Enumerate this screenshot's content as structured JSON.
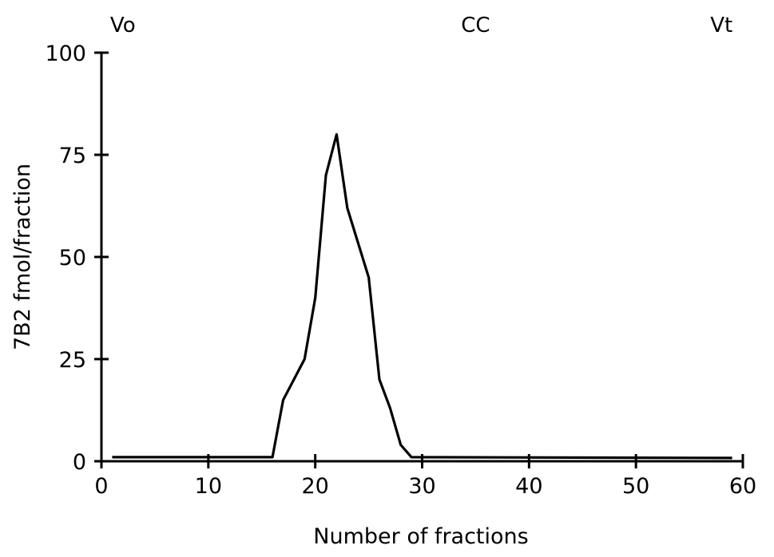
{
  "chart_data": {
    "type": "line",
    "title": "",
    "xlabel": "Number of fractions",
    "ylabel": "7B2 fmol/fraction",
    "xlim": [
      0,
      60
    ],
    "ylim": [
      0,
      100
    ],
    "xticks": [
      0,
      10,
      20,
      30,
      40,
      50,
      60
    ],
    "yticks": [
      0,
      25,
      50,
      75,
      100
    ],
    "grid": false,
    "legend": "none",
    "markers": [
      {
        "label": "Vo",
        "x": 2
      },
      {
        "label": "CC",
        "x": 35
      },
      {
        "label": "Vt",
        "x": 58
      }
    ],
    "series": [
      {
        "line_color": "#000000",
        "points": [
          [
            1,
            1
          ],
          [
            16,
            1
          ],
          [
            17,
            15
          ],
          [
            19,
            25
          ],
          [
            20,
            40
          ],
          [
            21,
            70
          ],
          [
            22,
            80
          ],
          [
            23,
            62
          ],
          [
            25,
            45
          ],
          [
            26,
            20
          ],
          [
            27,
            13
          ],
          [
            28,
            4
          ],
          [
            29,
            1
          ],
          [
            59,
            0.8
          ]
        ]
      }
    ]
  }
}
